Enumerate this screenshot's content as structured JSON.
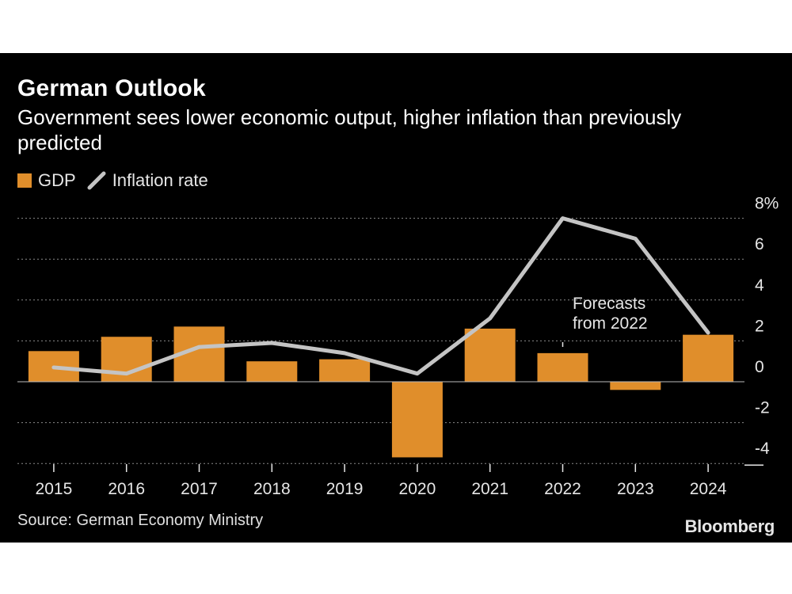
{
  "title": "German Outlook",
  "subtitle": "Government sees lower economic output, higher inflation than previously predicted",
  "legend": {
    "gdp_label": "GDP",
    "inflation_label": "Inflation rate"
  },
  "annotation": {
    "line1": "Forecasts",
    "line2": "from 2022"
  },
  "source": "Source: German Economy Ministry",
  "brand": "Bloomberg",
  "colors": {
    "background": "#000000",
    "gdp_bar": "#E08E2B",
    "inflation_line": "#C4C4C4",
    "grid": "#8a8a8a",
    "text": "#e6e6e6"
  },
  "chart_data": {
    "type": "bar",
    "categories": [
      "2015",
      "2016",
      "2017",
      "2018",
      "2019",
      "2020",
      "2021",
      "2022",
      "2023",
      "2024"
    ],
    "series": [
      {
        "name": "GDP",
        "type": "bar",
        "values": [
          1.5,
          2.2,
          2.7,
          1.0,
          1.1,
          -3.7,
          2.6,
          1.4,
          -0.4,
          2.3
        ]
      },
      {
        "name": "Inflation rate",
        "type": "line",
        "values": [
          0.7,
          0.4,
          1.7,
          1.9,
          1.4,
          0.4,
          3.1,
          8.0,
          7.0,
          2.4
        ]
      }
    ],
    "yticks": [
      "8%",
      "6",
      "4",
      "2",
      "0",
      "-2",
      "-4"
    ],
    "ylim": [
      -4,
      8
    ],
    "grid": true,
    "legend_position": "top-left"
  }
}
